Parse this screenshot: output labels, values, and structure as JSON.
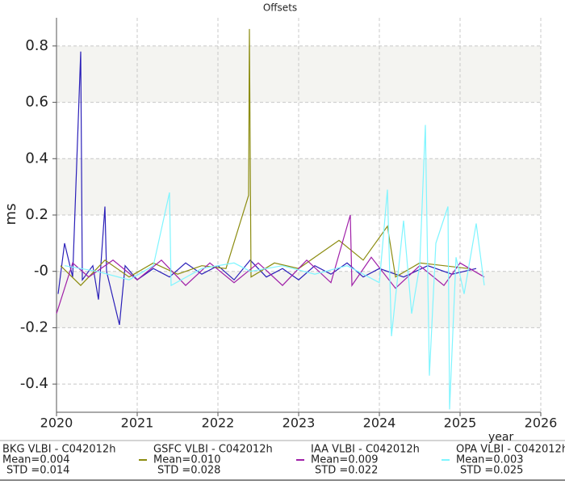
{
  "chart_data": {
    "type": "line",
    "title": "Offsets",
    "y_label": "ms",
    "x_label": "year",
    "xlim": [
      2020,
      2026
    ],
    "xticks": [
      2020,
      2021,
      2022,
      2023,
      2024,
      2025,
      2026
    ],
    "ylim": [
      -0.5,
      0.9
    ],
    "yticks": [
      0.8,
      0.6,
      0.4,
      0.2,
      {
        "value": 0,
        "label": "-0"
      },
      -0.2,
      -0.4
    ],
    "grid": true,
    "series": [
      {
        "name": "BKG VLBI - C042012h",
        "mean_label": "Mean=0.004",
        "std_label": "STD =0.014",
        "color": "#2a1fb8",
        "x": [
          2020.02,
          2020.1,
          2020.2,
          2020.3,
          2020.32,
          2020.45,
          2020.52,
          2020.6,
          2020.62,
          2020.78,
          2020.85,
          2021.0,
          2021.2,
          2021.4,
          2021.6,
          2021.8,
          2022.0,
          2022.2,
          2022.4,
          2022.6,
          2022.8,
          2023.0,
          2023.2,
          2023.4,
          2023.6,
          2023.8,
          2024.0,
          2024.3,
          2024.6,
          2024.9,
          2025.2
        ],
        "values": [
          -0.08,
          0.1,
          -0.02,
          0.78,
          -0.03,
          0.02,
          -0.1,
          0.23,
          0.0,
          -0.19,
          0.02,
          -0.03,
          0.01,
          -0.02,
          0.03,
          -0.01,
          0.02,
          -0.03,
          0.04,
          -0.02,
          0.01,
          -0.03,
          0.02,
          -0.01,
          0.03,
          -0.02,
          0.01,
          -0.02,
          0.02,
          -0.01,
          0.01
        ]
      },
      {
        "name": "GSFC VLBI - C042012h",
        "mean_label": "Mean=0.010",
        "std_label": "STD =0.028",
        "color": "#8c8c10",
        "x": [
          2020.05,
          2020.3,
          2020.6,
          2020.9,
          2021.2,
          2021.5,
          2021.8,
          2022.1,
          2022.38,
          2022.39,
          2022.41,
          2022.7,
          2023.0,
          2023.3,
          2023.5,
          2023.8,
          2024.1,
          2024.2,
          2024.5,
          2024.8,
          2025.1
        ],
        "values": [
          0.02,
          -0.05,
          0.04,
          -0.02,
          0.03,
          -0.01,
          0.02,
          0.01,
          0.27,
          0.86,
          -0.02,
          0.03,
          0.01,
          0.07,
          0.11,
          0.04,
          0.16,
          -0.02,
          0.03,
          0.02,
          0.01
        ]
      },
      {
        "name": "IAA VLBI - C042012h",
        "mean_label": "Mean=0.009",
        "std_label": "STD =0.022",
        "color": "#a020a8",
        "x": [
          2020.0,
          2020.2,
          2020.4,
          2020.7,
          2021.0,
          2021.3,
          2021.6,
          2021.9,
          2022.2,
          2022.5,
          2022.8,
          2023.1,
          2023.4,
          2023.64,
          2023.66,
          2023.9,
          2024.2,
          2024.5,
          2024.8,
          2025.0,
          2025.3
        ],
        "values": [
          -0.15,
          0.03,
          -0.02,
          0.04,
          -0.03,
          0.04,
          -0.05,
          0.03,
          -0.04,
          0.03,
          -0.05,
          0.04,
          -0.04,
          0.2,
          -0.05,
          0.05,
          -0.06,
          0.02,
          -0.05,
          0.03,
          -0.02
        ]
      },
      {
        "name": "OPA VLBI - C042012h",
        "mean_label": "Mean=0.003",
        "std_label": "STD =0.025",
        "color": "#7ff5ff",
        "x": [
          2020.1,
          2020.5,
          2020.9,
          2021.2,
          2021.4,
          2021.42,
          2021.8,
          2022.2,
          2022.4,
          2022.8,
          2023.2,
          2023.6,
          2024.0,
          2024.1,
          2024.15,
          2024.3,
          2024.4,
          2024.5,
          2024.57,
          2024.62,
          2024.7,
          2024.85,
          2024.87,
          2024.95,
          2025.05,
          2025.2,
          2025.3
        ],
        "values": [
          0.02,
          0.0,
          -0.03,
          0.02,
          0.28,
          -0.05,
          0.01,
          0.03,
          0.0,
          0.02,
          -0.01,
          0.02,
          -0.04,
          0.29,
          -0.23,
          0.18,
          -0.15,
          0.02,
          0.52,
          -0.37,
          0.1,
          0.23,
          -0.49,
          0.05,
          -0.08,
          0.17,
          -0.05
        ]
      }
    ]
  }
}
